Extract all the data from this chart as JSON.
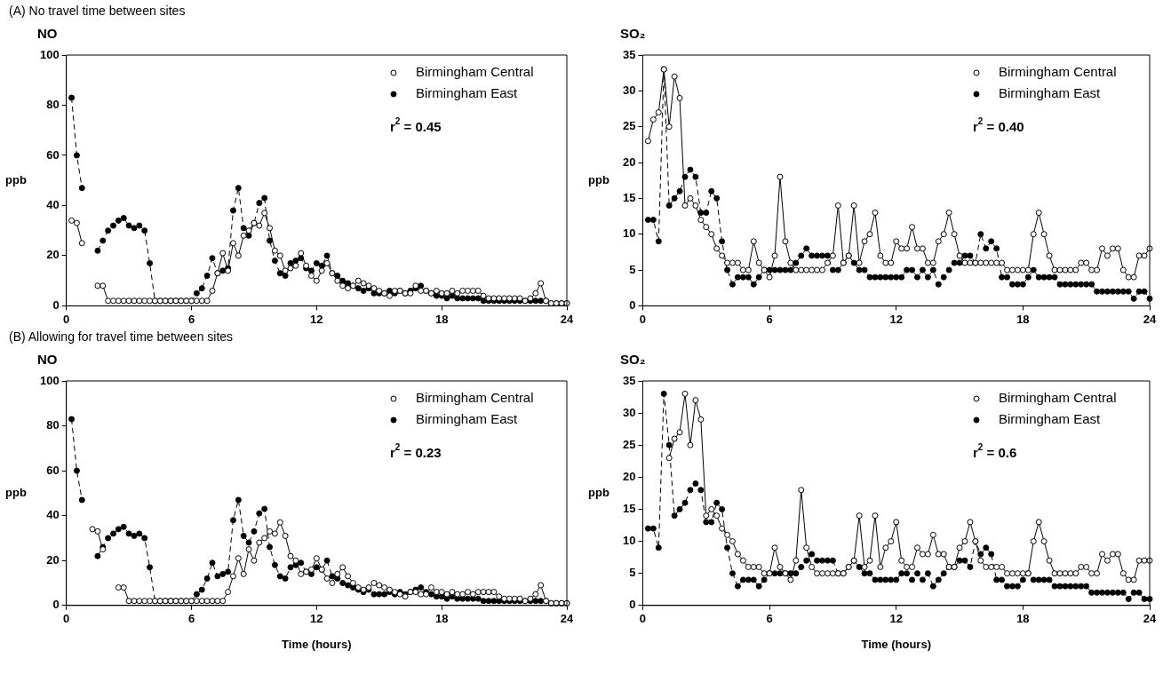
{
  "chart_data": [
    {
      "type": "line",
      "subtitle": "(A) No travel time between sites",
      "title": "NO",
      "ylabel": "ppb",
      "xlim": [
        0,
        24
      ],
      "xticks": [
        0,
        6,
        12,
        18,
        24
      ],
      "ylim": [
        0,
        100
      ],
      "yticks": [
        0,
        20,
        40,
        60,
        80,
        100
      ],
      "legend": "top right",
      "marker": "circle",
      "annotations": [
        "r$^{2}$ = 0.45"
      ],
      "x": [
        0.25,
        0.5,
        0.75,
        1,
        1.25,
        1.5,
        1.75,
        2,
        2.25,
        2.5,
        2.75,
        3,
        3.25,
        3.5,
        3.75,
        4,
        4.25,
        4.5,
        4.75,
        5,
        5.25,
        5.5,
        5.75,
        6,
        6.25,
        6.5,
        6.75,
        7,
        7.25,
        7.5,
        7.75,
        8,
        8.25,
        8.5,
        8.75,
        9,
        9.25,
        9.5,
        9.75,
        10,
        10.25,
        10.5,
        10.75,
        11,
        11.25,
        11.5,
        11.75,
        12,
        12.25,
        12.5,
        12.75,
        13,
        13.25,
        13.5,
        13.75,
        14,
        14.25,
        14.5,
        14.75,
        15,
        15.25,
        15.5,
        15.75,
        16,
        16.25,
        16.5,
        16.75,
        17,
        17.25,
        17.5,
        17.75,
        18,
        18.25,
        18.5,
        18.75,
        19,
        19.25,
        19.5,
        19.75,
        20,
        20.25,
        20.5,
        20.75,
        21,
        21.25,
        21.5,
        21.75,
        22,
        22.25,
        22.5,
        22.75,
        23,
        23.25,
        23.5,
        23.75,
        24
      ],
      "series": [
        {
          "name": "Birmingham Central",
          "color": "#000000",
          "line_style": "solid",
          "values": [
            34,
            33,
            25,
            null,
            null,
            8,
            8,
            2,
            2,
            2,
            2,
            2,
            2,
            2,
            2,
            2,
            2,
            2,
            2,
            2,
            2,
            2,
            2,
            2,
            2,
            2,
            2,
            6,
            13,
            21,
            14,
            25,
            20,
            28,
            30,
            33,
            32,
            37,
            31,
            22,
            20,
            14,
            15,
            16,
            21,
            16,
            12,
            10,
            14,
            17,
            13,
            10,
            8,
            7,
            8,
            10,
            9,
            8,
            7,
            6,
            5,
            4,
            6,
            6,
            5,
            5,
            8,
            6,
            6,
            5,
            6,
            5,
            5,
            6,
            5,
            6,
            6,
            6,
            6,
            4,
            3,
            3,
            3,
            3,
            3,
            3,
            3,
            2,
            3,
            5,
            9,
            2,
            1,
            1,
            1,
            1
          ]
        },
        {
          "name": "Birmingham East",
          "color": "#000000",
          "line_style": "dashed",
          "values": [
            83,
            60,
            47,
            null,
            null,
            22,
            26,
            30,
            32,
            34,
            35,
            32,
            31,
            32,
            30,
            17,
            2,
            2,
            2,
            2,
            2,
            2,
            2,
            2,
            5,
            7,
            12,
            19,
            13,
            14,
            15,
            38,
            47,
            31,
            28,
            33,
            41,
            43,
            26,
            18,
            13,
            12,
            17,
            18,
            19,
            15,
            14,
            17,
            16,
            20,
            13,
            12,
            10,
            9,
            8,
            7,
            6,
            7,
            5,
            5,
            5,
            6,
            5,
            6,
            5,
            6,
            7,
            8,
            6,
            5,
            4,
            4,
            3,
            4,
            3,
            3,
            3,
            3,
            3,
            2,
            2,
            2,
            2,
            2,
            2,
            2,
            2,
            2,
            2,
            2,
            2,
            2,
            1,
            1,
            1,
            1
          ]
        }
      ]
    },
    {
      "type": "line",
      "title": "SO₂",
      "ylabel": "ppb",
      "xlim": [
        0,
        24
      ],
      "xticks": [
        0,
        6,
        12,
        18,
        24
      ],
      "ylim": [
        0,
        35
      ],
      "yticks": [
        0,
        5,
        10,
        15,
        20,
        25,
        30,
        35
      ],
      "legend": "top right",
      "marker": "circle",
      "annotations": [
        "r$^{2}$ = 0.40"
      ],
      "x": [
        0.25,
        0.5,
        0.75,
        1,
        1.25,
        1.5,
        1.75,
        2,
        2.25,
        2.5,
        2.75,
        3,
        3.25,
        3.5,
        3.75,
        4,
        4.25,
        4.5,
        4.75,
        5,
        5.25,
        5.5,
        5.75,
        6,
        6.25,
        6.5,
        6.75,
        7,
        7.25,
        7.5,
        7.75,
        8,
        8.25,
        8.5,
        8.75,
        9,
        9.25,
        9.5,
        9.75,
        10,
        10.25,
        10.5,
        10.75,
        11,
        11.25,
        11.5,
        11.75,
        12,
        12.25,
        12.5,
        12.75,
        13,
        13.25,
        13.5,
        13.75,
        14,
        14.25,
        14.5,
        14.75,
        15,
        15.25,
        15.5,
        15.75,
        16,
        16.25,
        16.5,
        16.75,
        17,
        17.25,
        17.5,
        17.75,
        18,
        18.25,
        18.5,
        18.75,
        19,
        19.25,
        19.5,
        19.75,
        20,
        20.25,
        20.5,
        20.75,
        21,
        21.25,
        21.5,
        21.75,
        22,
        22.25,
        22.5,
        22.75,
        23,
        23.25,
        23.5,
        23.75,
        24
      ],
      "series": [
        {
          "name": "Birmingham Central",
          "color": "#000000",
          "line_style": "solid",
          "values": [
            23,
            26,
            27,
            33,
            25,
            32,
            29,
            14,
            15,
            14,
            12,
            11,
            10,
            8,
            7,
            6,
            6,
            6,
            5,
            5,
            9,
            6,
            5,
            4,
            7,
            18,
            9,
            6,
            5,
            5,
            5,
            5,
            5,
            5,
            6,
            7,
            14,
            6,
            7,
            14,
            6,
            9,
            10,
            13,
            7,
            6,
            6,
            9,
            8,
            8,
            11,
            8,
            8,
            6,
            6,
            9,
            10,
            13,
            10,
            7,
            6,
            6,
            6,
            6,
            6,
            6,
            6,
            6,
            5,
            5,
            5,
            5,
            5,
            10,
            13,
            10,
            7,
            5,
            5,
            5,
            5,
            5,
            6,
            6,
            5,
            5,
            8,
            7,
            8,
            8,
            5,
            4,
            4,
            7,
            7,
            8
          ]
        },
        {
          "name": "Birmingham East",
          "color": "#000000",
          "line_style": "dashed",
          "values": [
            12,
            12,
            9,
            33,
            14,
            15,
            16,
            18,
            19,
            18,
            13,
            13,
            16,
            15,
            9,
            5,
            3,
            4,
            4,
            4,
            3,
            4,
            5,
            5,
            5,
            5,
            5,
            5,
            6,
            7,
            8,
            7,
            7,
            7,
            7,
            5,
            5,
            6,
            7,
            6,
            5,
            5,
            4,
            4,
            4,
            4,
            4,
            4,
            4,
            5,
            5,
            4,
            5,
            4,
            5,
            3,
            4,
            5,
            6,
            6,
            7,
            7,
            6,
            10,
            8,
            9,
            8,
            4,
            4,
            3,
            3,
            3,
            4,
            5,
            4,
            4,
            4,
            4,
            3,
            3,
            3,
            3,
            3,
            3,
            3,
            2,
            2,
            2,
            2,
            2,
            2,
            2,
            1,
            2,
            2,
            1
          ]
        }
      ]
    },
    {
      "type": "line",
      "subtitle": "(B) Allowing for travel time between sites",
      "title": "NO",
      "ylabel": "ppb",
      "xlabel": "Time (hours)",
      "xlim": [
        0,
        24
      ],
      "xticks": [
        0,
        6,
        12,
        18,
        24
      ],
      "ylim": [
        0,
        100
      ],
      "yticks": [
        0,
        20,
        40,
        60,
        80,
        100
      ],
      "legend": "top right",
      "marker": "circle",
      "annotations": [
        "r$^{2}$ = 0.23"
      ],
      "x": [
        0.25,
        0.5,
        0.75,
        1,
        1.25,
        1.5,
        1.75,
        2,
        2.25,
        2.5,
        2.75,
        3,
        3.25,
        3.5,
        3.75,
        4,
        4.25,
        4.5,
        4.75,
        5,
        5.25,
        5.5,
        5.75,
        6,
        6.25,
        6.5,
        6.75,
        7,
        7.25,
        7.5,
        7.75,
        8,
        8.25,
        8.5,
        8.75,
        9,
        9.25,
        9.5,
        9.75,
        10,
        10.25,
        10.5,
        10.75,
        11,
        11.25,
        11.5,
        11.75,
        12,
        12.25,
        12.5,
        12.75,
        13,
        13.25,
        13.5,
        13.75,
        14,
        14.25,
        14.5,
        14.75,
        15,
        15.25,
        15.5,
        15.75,
        16,
        16.25,
        16.5,
        16.75,
        17,
        17.25,
        17.5,
        17.75,
        18,
        18.25,
        18.5,
        18.75,
        19,
        19.25,
        19.5,
        19.75,
        20,
        20.25,
        20.5,
        20.75,
        21,
        21.25,
        21.5,
        21.75,
        22,
        22.25,
        22.5,
        22.75,
        23,
        23.25,
        23.5,
        23.75,
        24
      ],
      "series": [
        {
          "name": "Birmingham Central",
          "color": "#000000",
          "line_style": "solid",
          "values": [
            null,
            null,
            null,
            null,
            34,
            33,
            25,
            null,
            null,
            8,
            8,
            2,
            2,
            2,
            2,
            2,
            2,
            2,
            2,
            2,
            2,
            2,
            2,
            2,
            2,
            2,
            2,
            2,
            2,
            2,
            6,
            13,
            21,
            14,
            25,
            20,
            28,
            30,
            33,
            32,
            37,
            31,
            22,
            20,
            14,
            15,
            16,
            21,
            16,
            12,
            10,
            14,
            17,
            13,
            10,
            8,
            7,
            8,
            10,
            9,
            8,
            7,
            6,
            5,
            4,
            6,
            6,
            5,
            5,
            8,
            6,
            6,
            5,
            6,
            5,
            5,
            6,
            5,
            6,
            6,
            6,
            6,
            4,
            3,
            3,
            3,
            3,
            2,
            3,
            5,
            9,
            2,
            1,
            1,
            1,
            1
          ]
        },
        {
          "name": "Birmingham East",
          "color": "#000000",
          "line_style": "dashed",
          "values": [
            83,
            60,
            47,
            null,
            null,
            22,
            26,
            30,
            32,
            34,
            35,
            32,
            31,
            32,
            30,
            17,
            2,
            2,
            2,
            2,
            2,
            2,
            2,
            2,
            5,
            7,
            12,
            19,
            13,
            14,
            15,
            38,
            47,
            31,
            28,
            33,
            41,
            43,
            26,
            18,
            13,
            12,
            17,
            18,
            19,
            15,
            14,
            17,
            16,
            20,
            13,
            12,
            10,
            9,
            8,
            7,
            6,
            7,
            5,
            5,
            5,
            6,
            5,
            6,
            5,
            6,
            7,
            8,
            6,
            5,
            4,
            4,
            3,
            4,
            3,
            3,
            3,
            3,
            3,
            2,
            2,
            2,
            2,
            2,
            2,
            2,
            2,
            2,
            2,
            2,
            2,
            2,
            1,
            1,
            1,
            1
          ]
        }
      ]
    },
    {
      "type": "line",
      "title": "SO₂",
      "ylabel": "ppb",
      "xlabel": "Time (hours)",
      "xlim": [
        0,
        24
      ],
      "xticks": [
        0,
        6,
        12,
        18,
        24
      ],
      "ylim": [
        0,
        35
      ],
      "yticks": [
        0,
        5,
        10,
        15,
        20,
        25,
        30,
        35
      ],
      "legend": "top right",
      "marker": "circle",
      "annotations": [
        "r$^{2}$ = 0.6"
      ],
      "x": [
        0.25,
        0.5,
        0.75,
        1,
        1.25,
        1.5,
        1.75,
        2,
        2.25,
        2.5,
        2.75,
        3,
        3.25,
        3.5,
        3.75,
        4,
        4.25,
        4.5,
        4.75,
        5,
        5.25,
        5.5,
        5.75,
        6,
        6.25,
        6.5,
        6.75,
        7,
        7.25,
        7.5,
        7.75,
        8,
        8.25,
        8.5,
        8.75,
        9,
        9.25,
        9.5,
        9.75,
        10,
        10.25,
        10.5,
        10.75,
        11,
        11.25,
        11.5,
        11.75,
        12,
        12.25,
        12.5,
        12.75,
        13,
        13.25,
        13.5,
        13.75,
        14,
        14.25,
        14.5,
        14.75,
        15,
        15.25,
        15.5,
        15.75,
        16,
        16.25,
        16.5,
        16.75,
        17,
        17.25,
        17.5,
        17.75,
        18,
        18.25,
        18.5,
        18.75,
        19,
        19.25,
        19.5,
        19.75,
        20,
        20.25,
        20.5,
        20.75,
        21,
        21.25,
        21.5,
        21.75,
        22,
        22.25,
        22.5,
        22.75,
        23,
        23.25,
        23.5,
        23.75,
        24
      ],
      "series": [
        {
          "name": "Birmingham Central",
          "color": "#000000",
          "line_style": "solid",
          "values": [
            null,
            null,
            null,
            null,
            23,
            26,
            27,
            33,
            25,
            32,
            29,
            14,
            15,
            14,
            12,
            11,
            10,
            8,
            7,
            6,
            6,
            6,
            5,
            5,
            9,
            6,
            5,
            4,
            7,
            18,
            9,
            6,
            5,
            5,
            5,
            5,
            5,
            5,
            6,
            7,
            14,
            6,
            7,
            14,
            6,
            9,
            10,
            13,
            7,
            6,
            6,
            9,
            8,
            8,
            11,
            8,
            8,
            6,
            6,
            9,
            10,
            13,
            10,
            7,
            6,
            6,
            6,
            6,
            5,
            5,
            5,
            5,
            5,
            10,
            13,
            10,
            7,
            5,
            5,
            5,
            5,
            5,
            6,
            6,
            5,
            5,
            8,
            7,
            8,
            8,
            5,
            4,
            4,
            7,
            7,
            7
          ]
        },
        {
          "name": "Birmingham East",
          "color": "#000000",
          "line_style": "dashed",
          "values": [
            12,
            12,
            9,
            33,
            25,
            14,
            15,
            16,
            18,
            19,
            18,
            13,
            13,
            16,
            15,
            9,
            5,
            3,
            4,
            4,
            4,
            3,
            4,
            5,
            5,
            5,
            5,
            5,
            5,
            6,
            7,
            8,
            7,
            7,
            7,
            7,
            5,
            5,
            6,
            7,
            6,
            5,
            5,
            4,
            4,
            4,
            4,
            4,
            5,
            5,
            4,
            5,
            4,
            5,
            3,
            4,
            5,
            6,
            6,
            7,
            7,
            6,
            10,
            8,
            9,
            8,
            4,
            4,
            3,
            3,
            3,
            4,
            5,
            4,
            4,
            4,
            4,
            3,
            3,
            3,
            3,
            3,
            3,
            3,
            2,
            2,
            2,
            2,
            2,
            2,
            2,
            1,
            2,
            2,
            1,
            1
          ]
        }
      ]
    }
  ]
}
